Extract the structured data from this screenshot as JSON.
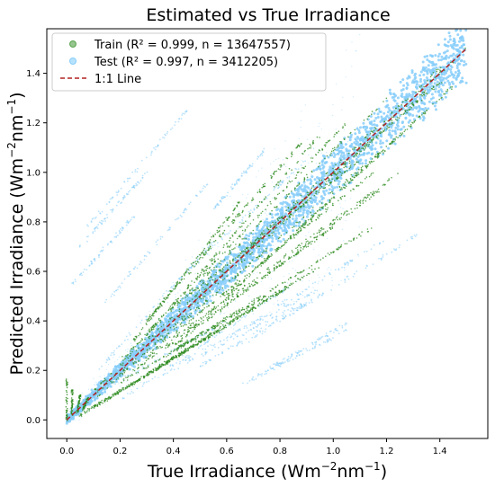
{
  "chart_data": {
    "type": "scatter",
    "title": "Estimated vs True Irradiance",
    "xlabel": {
      "main": "True Irradiance (Wm",
      "sup1": "−2",
      "mid": "nm",
      "sup2": "−1",
      "end": ")"
    },
    "ylabel": {
      "main": "Predicted Irradiance (Wm",
      "sup1": "−2",
      "mid": "nm",
      "sup2": "−1",
      "end": ")"
    },
    "xlim": [
      -0.075,
      1.58
    ],
    "ylim": [
      -0.075,
      1.58
    ],
    "x_ticks": [
      0.0,
      0.2,
      0.4,
      0.6,
      0.8,
      1.0,
      1.2,
      1.4
    ],
    "x_tick_labels": [
      "0.0",
      "0.2",
      "0.4",
      "0.6",
      "0.8",
      "1.0",
      "1.2",
      "1.4"
    ],
    "y_ticks": [
      0.0,
      0.2,
      0.4,
      0.6,
      0.8,
      1.0,
      1.2,
      1.4
    ],
    "y_tick_labels": [
      "0.0",
      "0.2",
      "0.4",
      "0.6",
      "0.8",
      "1.0",
      "1.2",
      "1.4"
    ],
    "grid": false,
    "legend_position": "top-left",
    "series": [
      {
        "name": "Train (R² = 0.999, n = 13647557)",
        "color": "#2e8b1f",
        "marker": "circle",
        "streaks": [
          [
            0.0,
            0.0,
            1.5,
            1.5
          ],
          [
            0.1,
            0.08,
            1.35,
            1.33
          ],
          [
            0.1,
            0.12,
            1.4,
            1.42
          ],
          [
            0.2,
            0.18,
            1.25,
            1.15
          ],
          [
            0.2,
            0.24,
            1.2,
            1.3
          ],
          [
            0.3,
            0.26,
            1.15,
            1.0
          ],
          [
            0.3,
            0.35,
            1.05,
            1.2
          ],
          [
            0.2,
            0.22,
            0.95,
            1.15
          ],
          [
            0.4,
            0.3,
            1.2,
            0.95
          ],
          [
            0.35,
            0.22,
            0.95,
            0.62
          ],
          [
            0.4,
            0.28,
            1.15,
            0.78
          ],
          [
            0.15,
            0.08,
            0.85,
            0.55
          ],
          [
            0.25,
            0.2,
            1.0,
            0.78
          ],
          [
            0.3,
            0.4,
            0.88,
            1.12
          ],
          [
            0.25,
            0.32,
            0.65,
            0.88
          ],
          [
            0.5,
            0.4,
            1.3,
            1.2
          ],
          [
            0.45,
            0.5,
            1.1,
            1.05
          ],
          [
            0.1,
            0.05,
            0.6,
            0.38
          ],
          [
            0.05,
            0.02,
            0.45,
            0.28
          ],
          [
            0.6,
            0.5,
            1.45,
            1.35
          ],
          [
            0.7,
            0.72,
            1.42,
            1.38
          ],
          [
            0.3,
            0.25,
            1.25,
            1.0
          ],
          [
            0.2,
            0.15,
            0.75,
            0.5
          ]
        ],
        "spikes": [
          [
            0.0,
            0.0,
            0.0,
            0.17
          ],
          [
            0.02,
            0.02,
            0.02,
            0.12
          ],
          [
            0.04,
            0.03,
            0.05,
            0.1
          ],
          [
            0.06,
            0.04,
            0.08,
            0.09
          ]
        ]
      },
      {
        "name": "Test (R² = 0.997, n = 3412205)",
        "color": "#87cefa",
        "marker": "circle",
        "streaks": [
          [
            0.05,
            0.7,
            0.3,
            1.0
          ],
          [
            0.08,
            0.78,
            0.45,
            1.25
          ],
          [
            0.02,
            0.55,
            0.25,
            0.82
          ],
          [
            0.15,
            0.48,
            0.55,
            0.98
          ],
          [
            0.4,
            0.22,
            0.95,
            0.53
          ],
          [
            0.5,
            0.22,
            0.98,
            0.52
          ],
          [
            0.65,
            0.14,
            1.05,
            0.36
          ],
          [
            0.75,
            0.2,
            1.05,
            0.39
          ],
          [
            0.2,
            0.08,
            0.85,
            0.55
          ],
          [
            0.1,
            0.1,
            0.6,
            0.4
          ],
          [
            0.6,
            0.33,
            1.2,
            0.73
          ],
          [
            0.65,
            0.3,
            1.32,
            0.75
          ],
          [
            0.3,
            0.15,
            0.9,
            0.48
          ],
          [
            0.05,
            0.05,
            0.55,
            0.5
          ],
          [
            0.45,
            0.6,
            0.9,
            1.05
          ],
          [
            0.55,
            0.85,
            0.75,
            1.1
          ],
          [
            0.1,
            0.18,
            0.55,
            0.72
          ]
        ]
      },
      {
        "name": "1:1 Line",
        "color": "#b22222",
        "line_style": "dashed",
        "x": [
          0.0,
          1.5
        ],
        "y": [
          0.0,
          1.5
        ]
      }
    ]
  }
}
